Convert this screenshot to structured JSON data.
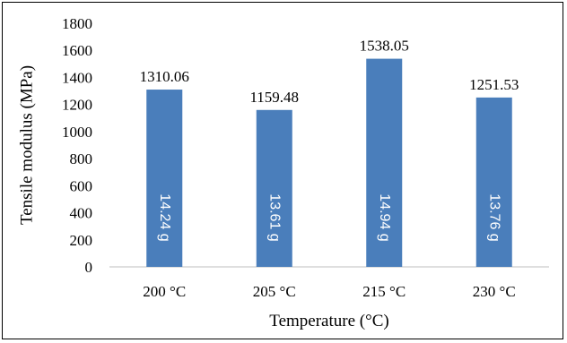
{
  "chart_data": {
    "type": "bar",
    "xlabel": "Temperature (°C)",
    "ylabel": "Tensile modulus (MPa)",
    "categories": [
      "200 °C",
      "205 °C",
      "215 °C",
      "230 °C"
    ],
    "values": [
      1310.06,
      1159.48,
      1538.05,
      1251.53
    ],
    "value_labels": [
      "1310.06",
      "1159.48",
      "1538.05",
      "1251.53"
    ],
    "bar_annotations": [
      "14.24 g",
      "13.61 g",
      "14.94 g",
      "13.76 g"
    ],
    "ylim": [
      0,
      1800
    ],
    "yticks": [
      "0",
      "200",
      "400",
      "600",
      "800",
      "1000",
      "1200",
      "1400",
      "1600",
      "1800"
    ],
    "bar_color": "#4a7ebb",
    "grid": false,
    "legend": "none"
  }
}
